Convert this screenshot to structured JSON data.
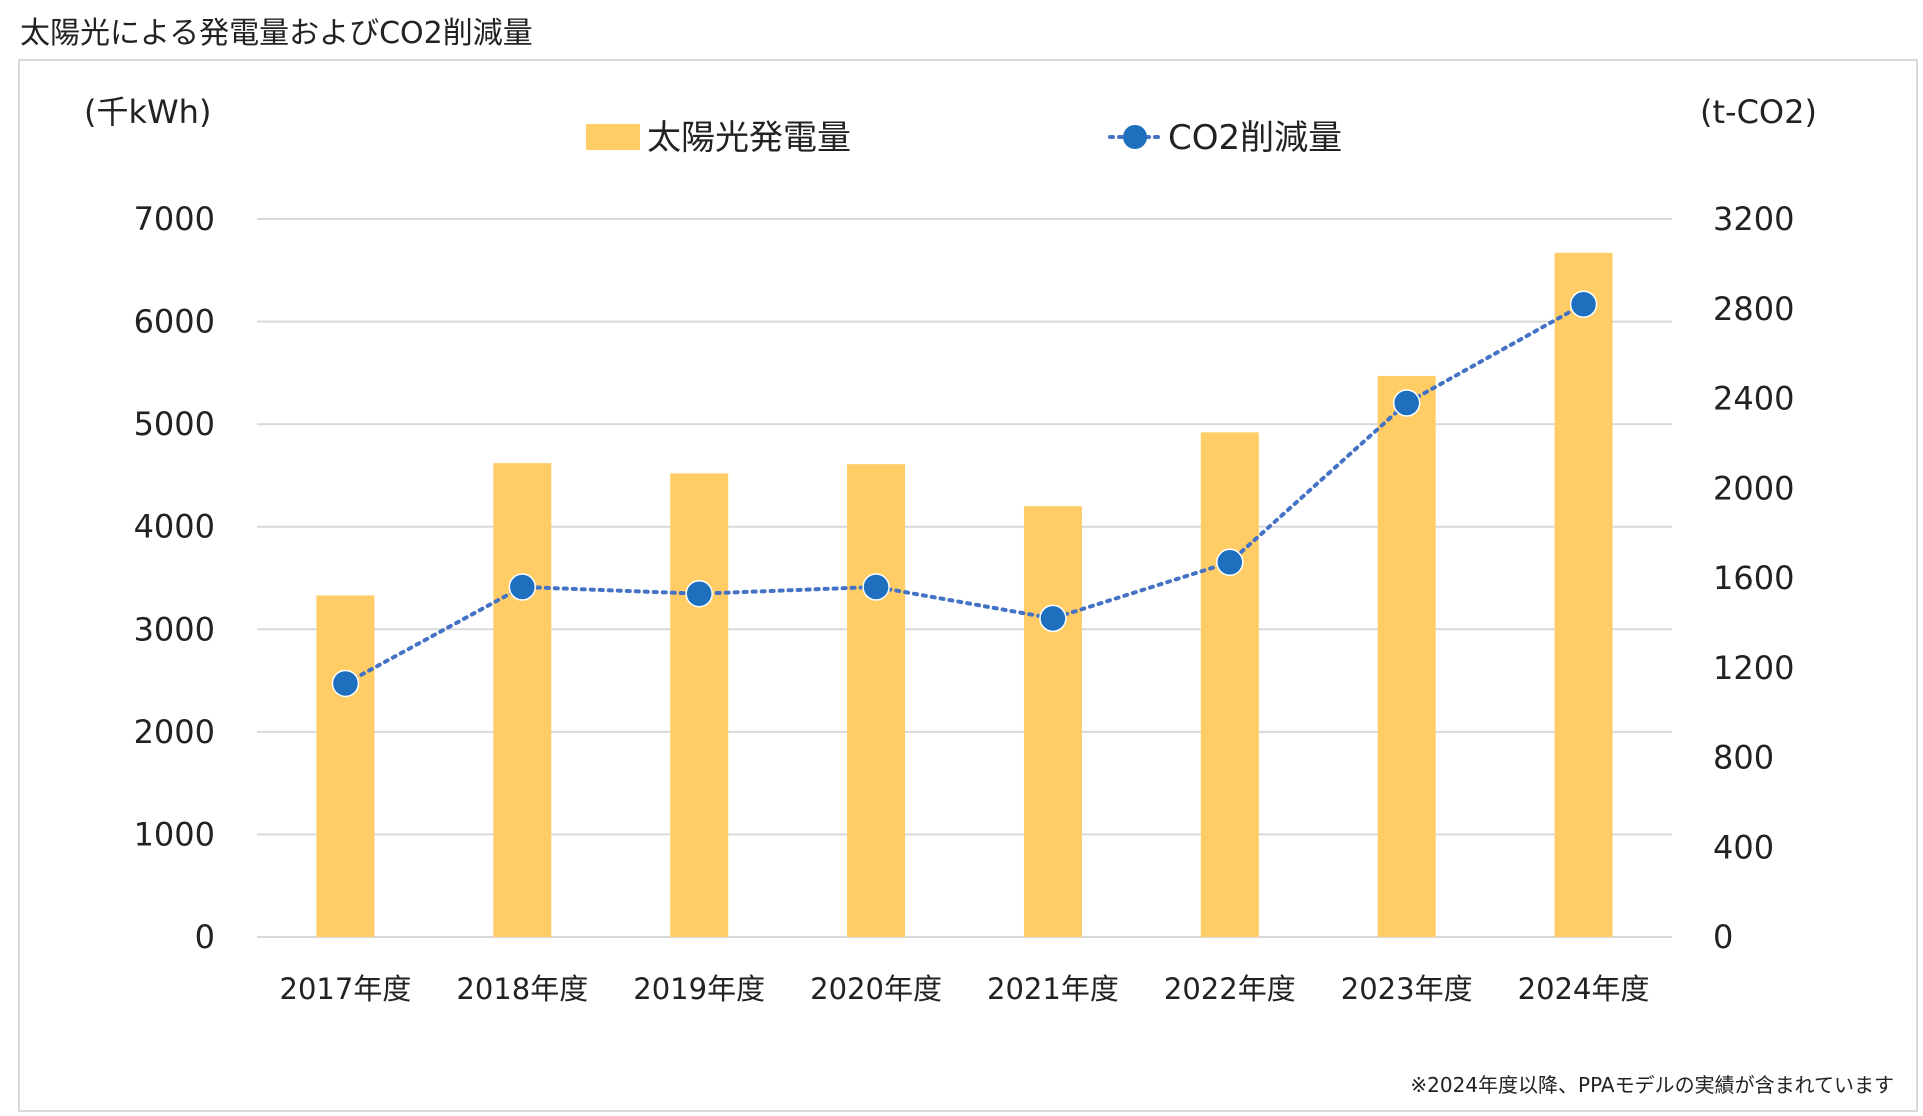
{
  "title": "太陽光による発電量およびCO2削減量",
  "note": "※2024年度以降、PPAモデルの実績が含まれています",
  "colors": {
    "bar": "#FFCC66",
    "line": "#4472C4",
    "marker": "#1F6FBF",
    "grid": "#d9d9d9",
    "text": "#222222"
  },
  "chart_data": {
    "type": "bar",
    "categories": [
      "2017年度",
      "2018年度",
      "2019年度",
      "2020年度",
      "2021年度",
      "2022年度",
      "2023年度",
      "2024年度"
    ],
    "y_left_label": "(千kWh)",
    "y_right_label": "(t-CO2)",
    "y_left_ticks": [
      "0",
      "1000",
      "2000",
      "3000",
      "4000",
      "5000",
      "6000",
      "7000"
    ],
    "y_right_ticks": [
      "0",
      "400",
      "800",
      "1200",
      "1600",
      "2000",
      "2400",
      "2800",
      "3200"
    ],
    "ylim_left": [
      0,
      7000
    ],
    "ylim_right": [
      0,
      3200
    ],
    "grid": true,
    "legend_position": "top",
    "series": [
      {
        "name": "太陽光発電量",
        "type": "bar",
        "axis": "left",
        "values": [
          3330,
          4620,
          4520,
          4610,
          4200,
          4920,
          5470,
          6670
        ]
      },
      {
        "name": "CO2削減量",
        "type": "line",
        "axis": "right",
        "style": "dotted",
        "values": [
          1130,
          1560,
          1530,
          1560,
          1420,
          1670,
          2380,
          2820
        ]
      }
    ]
  }
}
